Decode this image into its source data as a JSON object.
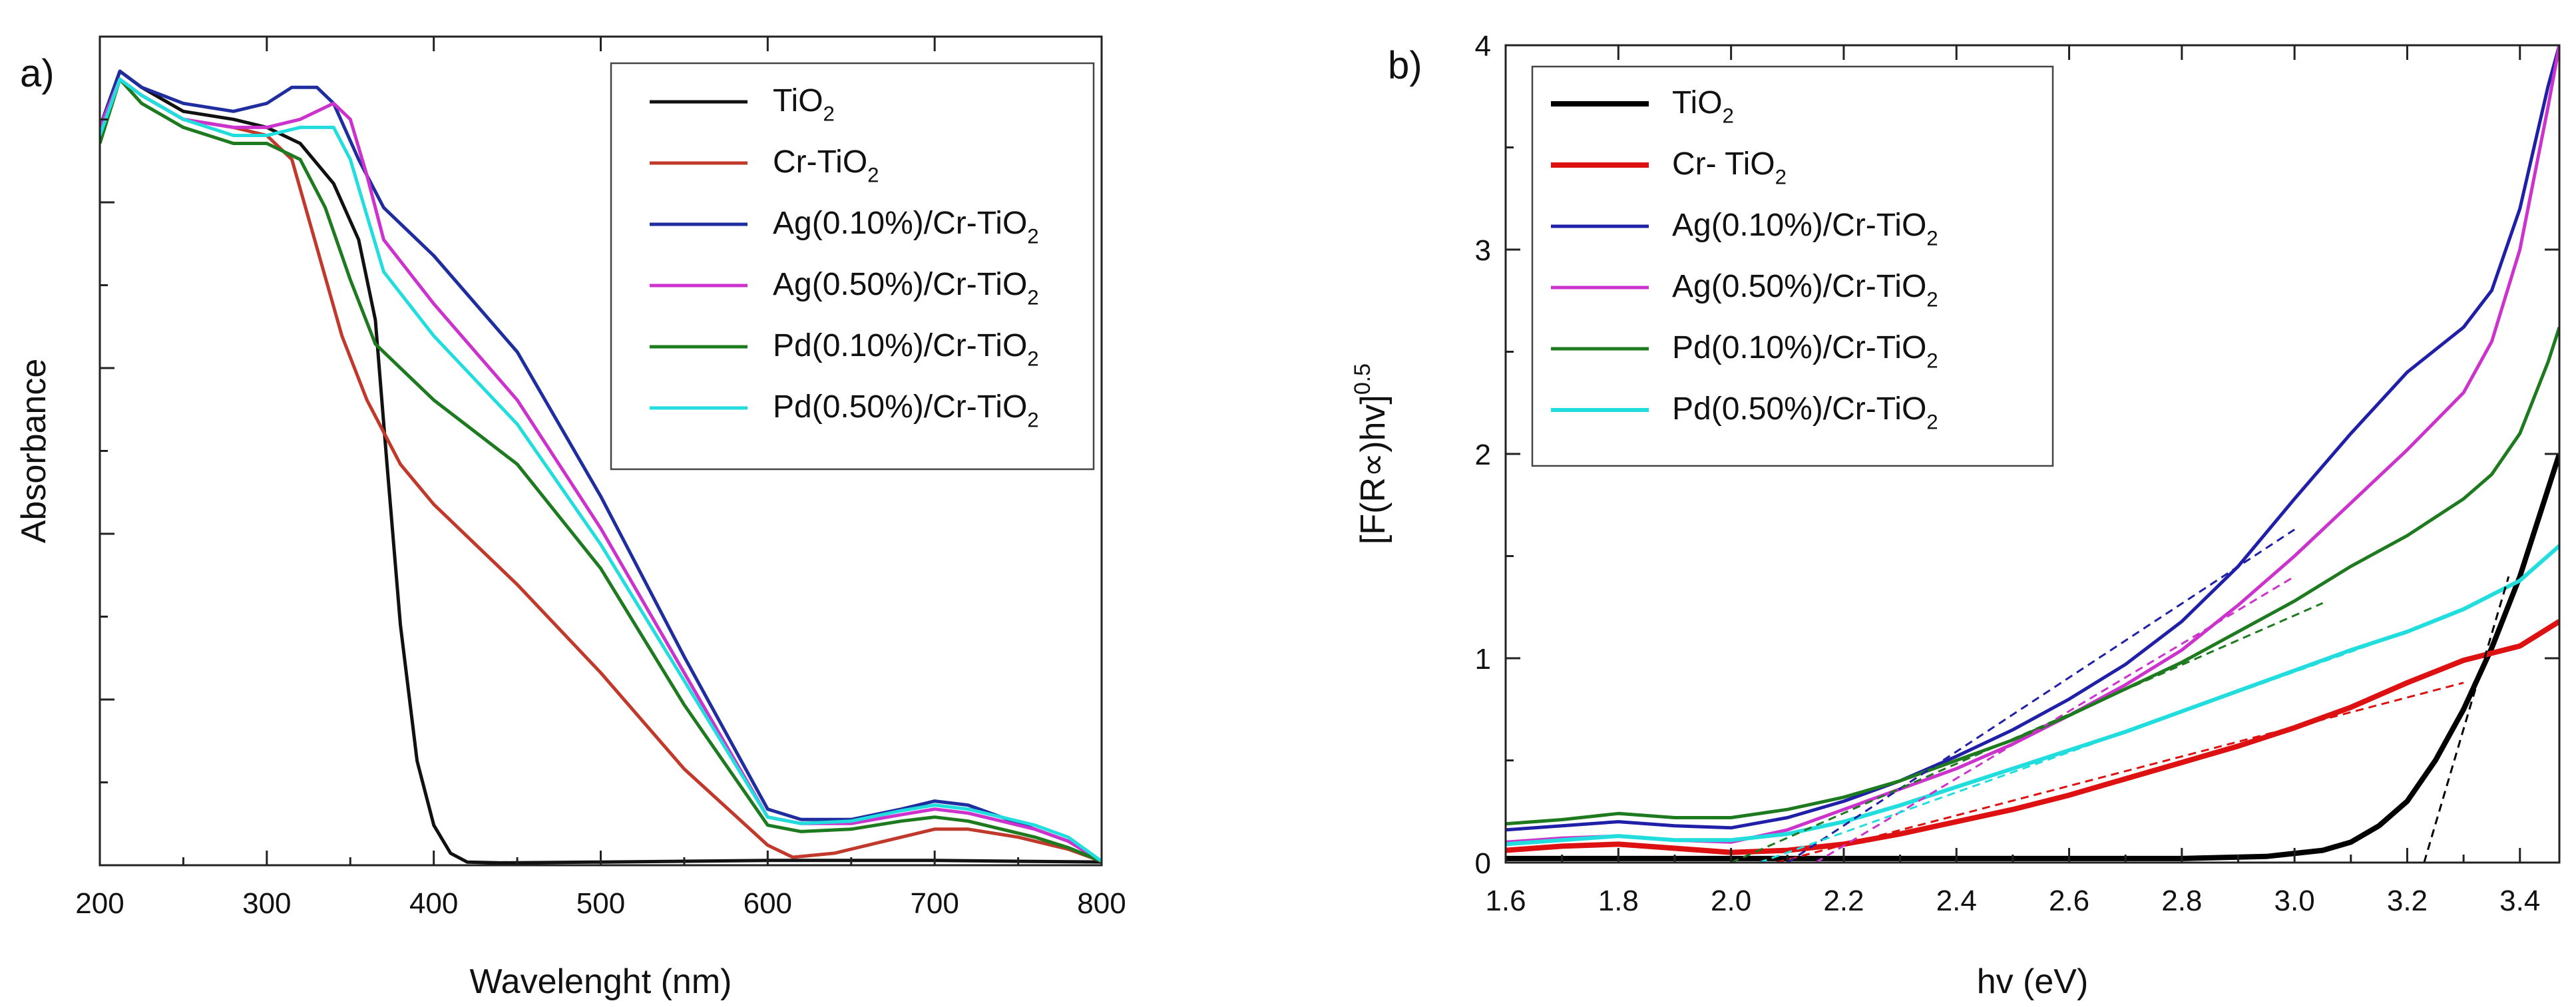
{
  "chart_data": [
    {
      "type": "line",
      "panel_label": "a)",
      "xlabel": "Wavelenght (nm)",
      "ylabel": "Absorbance",
      "xlim": [
        200,
        800
      ],
      "ylim": [
        0,
        1
      ],
      "xticks": [
        200,
        300,
        400,
        500,
        600,
        700,
        800
      ],
      "y_tick_labels_shown": false,
      "legend": {
        "position": "top-right",
        "entries": [
          "TiO2",
          "Cr-TiO2",
          "Ag(0.10%)/Cr-TiO2",
          "Ag(0.50%)/Cr-TiO2",
          "Pd(0.10%)/Cr-TiO2",
          "Pd(0.50%)/Cr-TiO2"
        ]
      },
      "series": [
        {
          "name": "TiO2",
          "color": "#111111",
          "x": [
            200,
            212,
            225,
            250,
            280,
            300,
            320,
            340,
            355,
            365,
            372,
            380,
            390,
            400,
            410,
            420,
            440,
            500,
            600,
            700,
            800
          ],
          "y": [
            0.92,
            0.99,
            0.97,
            0.94,
            0.93,
            0.92,
            0.9,
            0.85,
            0.78,
            0.68,
            0.5,
            0.3,
            0.13,
            0.05,
            0.015,
            0.004,
            0.003,
            0.004,
            0.006,
            0.006,
            0.004
          ]
        },
        {
          "name": "Cr-TiO2",
          "color": "#c0392b",
          "x": [
            200,
            212,
            225,
            250,
            280,
            300,
            315,
            330,
            345,
            360,
            380,
            400,
            450,
            500,
            550,
            600,
            615,
            640,
            670,
            700,
            720,
            750,
            780,
            800
          ],
          "y": [
            0.91,
            0.98,
            0.96,
            0.93,
            0.92,
            0.91,
            0.88,
            0.77,
            0.66,
            0.58,
            0.5,
            0.45,
            0.35,
            0.24,
            0.12,
            0.025,
            0.01,
            0.015,
            0.03,
            0.045,
            0.045,
            0.035,
            0.02,
            0.005
          ]
        },
        {
          "name": "Ag(0.10%)/Cr-TiO2",
          "color": "#1f2d9e",
          "x": [
            200,
            212,
            225,
            250,
            280,
            300,
            315,
            330,
            340,
            355,
            370,
            400,
            450,
            500,
            550,
            600,
            620,
            650,
            680,
            700,
            720,
            740,
            760,
            780,
            800
          ],
          "y": [
            0.92,
            0.99,
            0.97,
            0.95,
            0.94,
            0.95,
            0.97,
            0.97,
            0.95,
            0.88,
            0.82,
            0.76,
            0.64,
            0.46,
            0.26,
            0.07,
            0.057,
            0.057,
            0.07,
            0.08,
            0.075,
            0.06,
            0.045,
            0.03,
            0.005
          ]
        },
        {
          "name": "Ag(0.50%)/Cr-TiO2",
          "color": "#cc33cc",
          "x": [
            200,
            212,
            225,
            250,
            280,
            300,
            320,
            340,
            350,
            360,
            370,
            400,
            450,
            500,
            550,
            600,
            620,
            650,
            680,
            700,
            720,
            740,
            760,
            780,
            800
          ],
          "y": [
            0.92,
            0.98,
            0.96,
            0.93,
            0.92,
            0.92,
            0.93,
            0.95,
            0.93,
            0.86,
            0.78,
            0.7,
            0.58,
            0.42,
            0.24,
            0.06,
            0.052,
            0.052,
            0.063,
            0.07,
            0.065,
            0.055,
            0.045,
            0.03,
            0.005
          ]
        },
        {
          "name": "Pd(0.10%)/Cr-TiO2",
          "color": "#1e7a1e",
          "x": [
            200,
            212,
            225,
            250,
            280,
            300,
            310,
            320,
            335,
            350,
            365,
            380,
            400,
            450,
            500,
            550,
            600,
            620,
            650,
            680,
            700,
            720,
            740,
            760,
            780,
            800
          ],
          "y": [
            0.9,
            0.98,
            0.95,
            0.92,
            0.9,
            0.9,
            0.89,
            0.88,
            0.82,
            0.73,
            0.65,
            0.62,
            0.58,
            0.5,
            0.37,
            0.2,
            0.05,
            0.042,
            0.045,
            0.055,
            0.06,
            0.055,
            0.045,
            0.035,
            0.022,
            0.005
          ]
        },
        {
          "name": "Pd(0.50%)/Cr-TiO2",
          "color": "#22dddd",
          "x": [
            200,
            212,
            225,
            250,
            280,
            300,
            320,
            340,
            350,
            360,
            370,
            400,
            450,
            500,
            550,
            600,
            620,
            650,
            680,
            700,
            720,
            740,
            760,
            780,
            800
          ],
          "y": [
            0.91,
            0.98,
            0.96,
            0.93,
            0.91,
            0.91,
            0.92,
            0.92,
            0.88,
            0.81,
            0.74,
            0.66,
            0.55,
            0.4,
            0.23,
            0.06,
            0.052,
            0.055,
            0.068,
            0.075,
            0.07,
            0.06,
            0.05,
            0.035,
            0.005
          ]
        }
      ]
    },
    {
      "type": "line",
      "panel_label": "b)",
      "xlabel": "hv (eV)",
      "ylabel": "[F(R∝)hv]",
      "ylabel_superscript": "0.5",
      "xlim": [
        1.6,
        3.47
      ],
      "ylim": [
        0,
        4
      ],
      "xticks": [
        1.6,
        1.8,
        2.0,
        2.2,
        2.4,
        2.6,
        2.8,
        3.0,
        3.2,
        3.4
      ],
      "xtick_labels": [
        "1.6",
        "1.8",
        "2.0",
        "2.2",
        "2.4",
        "2.6",
        "2.8",
        "3.0",
        "3.2",
        "3.4"
      ],
      "yticks": [
        0,
        1,
        2,
        3,
        4
      ],
      "ytick_labels": [
        "0",
        "1",
        "2",
        "3",
        "4"
      ],
      "legend": {
        "position": "top-left",
        "entries": [
          "TiO2",
          "Cr- TiO2",
          "Ag(0.10%)/Cr-TiO2",
          "Ag(0.50%)/Cr-TiO2",
          "Pd(0.10%)/Cr-TiO2",
          "Pd(0.50%)/Cr-TiO2"
        ]
      },
      "series": [
        {
          "name": "TiO2",
          "color": "#000000",
          "x": [
            1.6,
            1.8,
            2.0,
            2.2,
            2.4,
            2.6,
            2.8,
            2.95,
            3.05,
            3.1,
            3.15,
            3.2,
            3.25,
            3.3,
            3.35,
            3.4,
            3.47
          ],
          "y": [
            0.02,
            0.02,
            0.02,
            0.02,
            0.02,
            0.02,
            0.02,
            0.03,
            0.06,
            0.1,
            0.18,
            0.3,
            0.5,
            0.75,
            1.05,
            1.4,
            2.0
          ]
        },
        {
          "name": "Cr- TiO2",
          "color": "#dd1111",
          "x": [
            1.6,
            1.7,
            1.8,
            1.9,
            2.0,
            2.1,
            2.2,
            2.3,
            2.4,
            2.5,
            2.6,
            2.7,
            2.8,
            2.9,
            3.0,
            3.1,
            3.2,
            3.3,
            3.4,
            3.47
          ],
          "y": [
            0.06,
            0.08,
            0.09,
            0.07,
            0.05,
            0.06,
            0.09,
            0.14,
            0.2,
            0.26,
            0.33,
            0.41,
            0.49,
            0.57,
            0.66,
            0.76,
            0.88,
            0.99,
            1.06,
            1.18
          ]
        },
        {
          "name": "Ag(0.10%)/Cr-TiO2",
          "color": "#1f1fa8",
          "x": [
            1.6,
            1.7,
            1.8,
            1.9,
            2.0,
            2.1,
            2.2,
            2.3,
            2.4,
            2.5,
            2.6,
            2.7,
            2.8,
            2.9,
            3.0,
            3.1,
            3.2,
            3.3,
            3.35,
            3.4,
            3.45,
            3.47
          ],
          "y": [
            0.16,
            0.18,
            0.2,
            0.18,
            0.17,
            0.22,
            0.3,
            0.4,
            0.52,
            0.65,
            0.8,
            0.97,
            1.18,
            1.45,
            1.78,
            2.1,
            2.4,
            2.62,
            2.8,
            3.2,
            3.8,
            4.0
          ]
        },
        {
          "name": "Ag(0.50%)/Cr-TiO2",
          "color": "#cc33cc",
          "x": [
            1.6,
            1.7,
            1.8,
            1.9,
            2.0,
            2.1,
            2.2,
            2.3,
            2.4,
            2.5,
            2.6,
            2.7,
            2.8,
            2.9,
            3.0,
            3.1,
            3.2,
            3.3,
            3.35,
            3.4,
            3.45,
            3.47
          ],
          "y": [
            0.1,
            0.12,
            0.13,
            0.11,
            0.1,
            0.16,
            0.26,
            0.36,
            0.46,
            0.58,
            0.72,
            0.87,
            1.04,
            1.26,
            1.5,
            1.76,
            2.02,
            2.3,
            2.55,
            3.0,
            3.7,
            4.0
          ]
        },
        {
          "name": "Pd(0.10%)/Cr-TiO2",
          "color": "#1e7a1e",
          "x": [
            1.6,
            1.7,
            1.8,
            1.9,
            2.0,
            2.1,
            2.2,
            2.3,
            2.4,
            2.5,
            2.6,
            2.7,
            2.8,
            2.9,
            3.0,
            3.1,
            3.2,
            3.3,
            3.35,
            3.4,
            3.45,
            3.47
          ],
          "y": [
            0.19,
            0.21,
            0.24,
            0.22,
            0.22,
            0.26,
            0.32,
            0.4,
            0.5,
            0.6,
            0.72,
            0.85,
            0.98,
            1.13,
            1.28,
            1.45,
            1.6,
            1.78,
            1.9,
            2.1,
            2.45,
            2.62
          ]
        },
        {
          "name": "Pd(0.50%)/Cr-TiO2",
          "color": "#22dddd",
          "x": [
            1.6,
            1.7,
            1.8,
            1.9,
            2.0,
            2.1,
            2.2,
            2.3,
            2.4,
            2.5,
            2.6,
            2.7,
            2.8,
            2.9,
            3.0,
            3.1,
            3.2,
            3.3,
            3.4,
            3.47
          ],
          "y": [
            0.09,
            0.11,
            0.13,
            0.11,
            0.11,
            0.14,
            0.2,
            0.28,
            0.37,
            0.46,
            0.55,
            0.64,
            0.74,
            0.84,
            0.94,
            1.04,
            1.13,
            1.24,
            1.38,
            1.55
          ]
        }
      ],
      "tangent_lines": [
        {
          "series": "TiO2",
          "color": "#000000",
          "x": [
            3.23,
            3.38
          ],
          "y": [
            0.0,
            1.4
          ]
        },
        {
          "series": "Cr- TiO2",
          "color": "#dd1111",
          "x": [
            2.08,
            3.3
          ],
          "y": [
            0.0,
            0.88
          ]
        },
        {
          "series": "Ag(0.10%)/Cr-TiO2",
          "color": "#1f1fa8",
          "x": [
            2.1,
            3.0
          ],
          "y": [
            0.0,
            1.63
          ]
        },
        {
          "series": "Ag(0.50%)/Cr-TiO2",
          "color": "#cc33cc",
          "x": [
            2.15,
            3.0
          ],
          "y": [
            0.0,
            1.4
          ]
        },
        {
          "series": "Pd(0.10%)/Cr-TiO2",
          "color": "#1e7a1e",
          "x": [
            2.0,
            3.05
          ],
          "y": [
            0.0,
            1.27
          ]
        },
        {
          "series": "Pd(0.50%)/Cr-TiO2",
          "color": "#22dddd",
          "x": [
            2.05,
            3.2
          ],
          "y": [
            0.0,
            1.13
          ]
        }
      ]
    }
  ]
}
